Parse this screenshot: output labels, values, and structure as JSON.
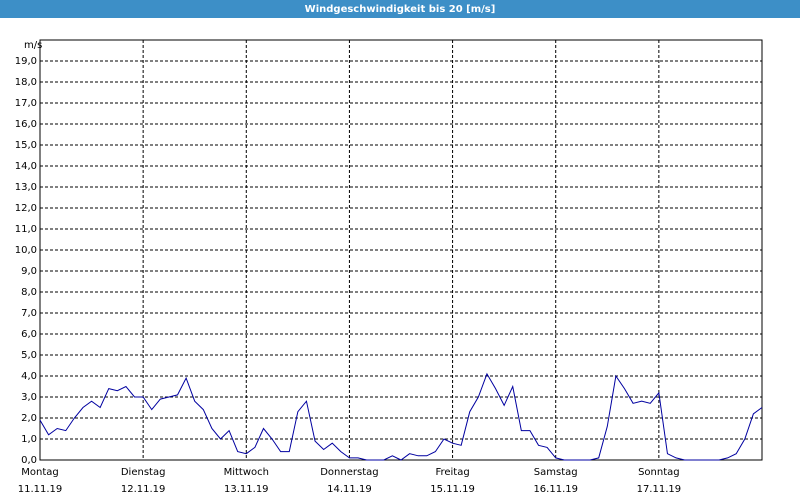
{
  "chart_data": {
    "type": "line",
    "title": "Windgeschwindigkeit bis 20 [m/s]",
    "y_unit": "m/s",
    "x": [
      0,
      2,
      4,
      6,
      8,
      10,
      12,
      14,
      16,
      18,
      20,
      22,
      24,
      26,
      28,
      30,
      32,
      34,
      36,
      38,
      40,
      42,
      44,
      46,
      48,
      50,
      52,
      54,
      56,
      58,
      60,
      62,
      64,
      66,
      68,
      70,
      72,
      74,
      76,
      78,
      80,
      82,
      84,
      86,
      88,
      90,
      92,
      94,
      96,
      98,
      100,
      102,
      104,
      106,
      108,
      110,
      112,
      114,
      116,
      118,
      120,
      122,
      124,
      126,
      128,
      130,
      132,
      134,
      136,
      138,
      140,
      142,
      144,
      146,
      148,
      150,
      152,
      154,
      156,
      158,
      160,
      162,
      164,
      166,
      168
    ],
    "series": [
      {
        "name": "Windgeschwindigkeit",
        "color": "#0000a0",
        "values": [
          1.9,
          1.2,
          1.5,
          1.4,
          2.0,
          2.5,
          2.8,
          2.5,
          3.4,
          3.3,
          3.5,
          3.0,
          3.0,
          2.4,
          2.9,
          3.0,
          3.1,
          3.9,
          2.8,
          2.4,
          1.5,
          1.0,
          1.4,
          0.4,
          0.3,
          0.6,
          1.5,
          1.0,
          0.4,
          0.4,
          2.3,
          2.8,
          0.9,
          0.5,
          0.8,
          0.4,
          0.1,
          0.1,
          0,
          0,
          0,
          0.2,
          0,
          0.3,
          0.2,
          0.2,
          0.4,
          1.0,
          0.8,
          0.7,
          2.3,
          3.0,
          4.1,
          3.4,
          2.6,
          3.5,
          1.4,
          1.4,
          0.7,
          0.6,
          0.1,
          0,
          0,
          0,
          0,
          0.1,
          1.6,
          4.0,
          3.4,
          2.7,
          2.8,
          2.7,
          3.2,
          0.3,
          0.1,
          0,
          0,
          0,
          0,
          0,
          0.1,
          0.3,
          1.0,
          2.2,
          2.5
        ]
      }
    ],
    "xlim": [
      0,
      168
    ],
    "xticks": [
      {
        "value": 0,
        "label": "Montag"
      },
      {
        "value": 24,
        "label": "Dienstag"
      },
      {
        "value": 48,
        "label": "Mittwoch"
      },
      {
        "value": 72,
        "label": "Donnerstag"
      },
      {
        "value": 96,
        "label": "Freitag"
      },
      {
        "value": 120,
        "label": "Samstag"
      },
      {
        "value": 144,
        "label": "Sonntag"
      }
    ],
    "xtick_dates": [
      "11.11.19",
      "12.11.19",
      "13.11.19",
      "14.11.19",
      "15.11.19",
      "16.11.19",
      "17.11.19"
    ],
    "ylim": [
      0,
      20
    ],
    "yticks": [
      {
        "value": 0,
        "label": "0,0"
      },
      {
        "value": 1,
        "label": "1,0"
      },
      {
        "value": 2,
        "label": "2,0"
      },
      {
        "value": 3,
        "label": "3,0"
      },
      {
        "value": 4,
        "label": "4,0"
      },
      {
        "value": 5,
        "label": "5,0"
      },
      {
        "value": 6,
        "label": "6,0"
      },
      {
        "value": 7,
        "label": "7,0"
      },
      {
        "value": 8,
        "label": "8,0"
      },
      {
        "value": 9,
        "label": "9,0"
      },
      {
        "value": 10,
        "label": "10,0"
      },
      {
        "value": 11,
        "label": "11,0"
      },
      {
        "value": 12,
        "label": "12,0"
      },
      {
        "value": 13,
        "label": "13,0"
      },
      {
        "value": 14,
        "label": "14,0"
      },
      {
        "value": 15,
        "label": "15,0"
      },
      {
        "value": 16,
        "label": "16,0"
      },
      {
        "value": 17,
        "label": "17,0"
      },
      {
        "value": 18,
        "label": "18,0"
      },
      {
        "value": 19,
        "label": "19,0"
      }
    ],
    "grid": true
  }
}
